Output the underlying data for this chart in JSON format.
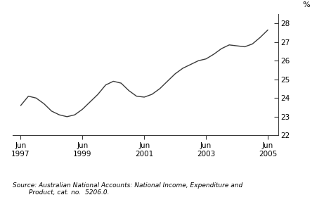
{
  "x_values": [
    1997.5,
    1997.75,
    1998.0,
    1998.25,
    1998.5,
    1998.75,
    1999.0,
    1999.25,
    1999.5,
    1999.75,
    2000.0,
    2000.25,
    2000.5,
    2000.75,
    2001.0,
    2001.25,
    2001.5,
    2001.75,
    2002.0,
    2002.25,
    2002.5,
    2002.75,
    2003.0,
    2003.25,
    2003.5,
    2003.75,
    2004.0,
    2004.25,
    2004.5,
    2004.75,
    2005.0,
    2005.25,
    2005.5
  ],
  "y_values": [
    23.6,
    24.1,
    24.0,
    23.7,
    23.3,
    23.1,
    23.0,
    23.1,
    23.4,
    23.8,
    24.2,
    24.7,
    24.9,
    24.8,
    24.4,
    24.1,
    24.05,
    24.2,
    24.5,
    24.9,
    25.3,
    25.6,
    25.8,
    26.0,
    26.1,
    26.35,
    26.65,
    26.85,
    26.8,
    26.75,
    26.9,
    27.25,
    27.65
  ],
  "x_ticks": [
    1997.5,
    1999.5,
    2001.5,
    2003.5,
    2005.5
  ],
  "x_tick_labels": [
    "Jun\n1997",
    "Jun\n1999",
    "Jun\n2001",
    "Jun\n2003",
    "Jun\n2005"
  ],
  "y_ticks": [
    22,
    23,
    24,
    25,
    26,
    27,
    28
  ],
  "ylim": [
    22,
    28.5
  ],
  "xlim": [
    1997.25,
    2005.85
  ],
  "y_label": "%",
  "line_color": "#3a3a3a",
  "line_width": 1.0,
  "source_line1": "Source: Australian National Accounts: National Income, Expenditure and",
  "source_line2": "        Product, cat. no.  5206.0.",
  "bg_color": "#ffffff"
}
